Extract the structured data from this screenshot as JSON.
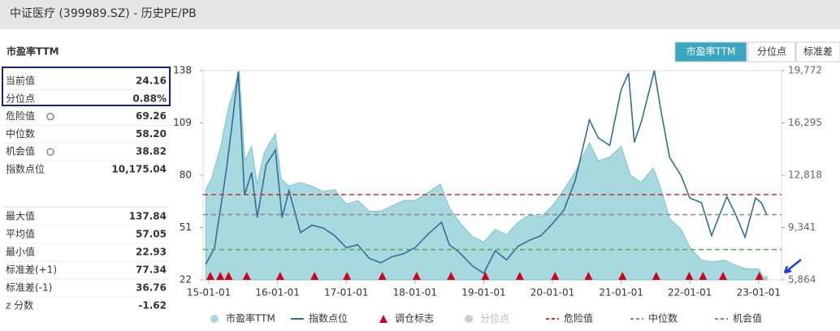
{
  "header": {
    "title": "中证医疗 (399989.SZ) - 历史PE/PB"
  },
  "tabs": [
    "市盈率TTM",
    "分位点",
    "标准差"
  ],
  "stats": {
    "title": "市盈率TTM",
    "current": [
      {
        "name": "当前值",
        "value": 24.16
      },
      {
        "name": "分位点",
        "value": {
          "value": 0.88,
          "label": "0.88%"
        }
      },
      {
        "name": "指数点位",
        "value": {
          "value": 10175.04,
          "label": "10,175.04"
        }
      }
    ],
    "summary": [
      {
        "name": "最大值",
        "value": 137.84
      },
      {
        "name": "平均值",
        "value": 57.05
      },
      {
        "name": "最小值",
        "value": 22.93
      },
      {
        "name": "标准差(+1)",
        "value": 77.34
      },
      {
        "name": "标准差(-1)",
        "value": 36.76
      },
      {
        "name": "z 分数",
        "value": -1.62
      }
    ]
  },
  "chart_data": {
    "type": "area-line",
    "xlim": [
      "14-12-01",
      "23-05-01"
    ],
    "xticks": [
      "15-01-01",
      "16-01-01",
      "17-01-01",
      "18-01-01",
      "19-01-01",
      "20-01-01",
      "21-01-01",
      "22-01-01",
      "23-01-01"
    ],
    "ylim": [
      22,
      138
    ],
    "yticks": [
      22,
      51,
      80,
      109,
      138
    ],
    "y2lim": [
      5864,
      19772
    ],
    "y2ticks": [
      {
        "value": 5864,
        "label": "5,864"
      },
      {
        "value": 9341,
        "label": "9,341"
      },
      {
        "value": 12818,
        "label": "12,818"
      },
      {
        "value": 16295,
        "label": "16,295"
      },
      {
        "value": 19772,
        "label": "19,772"
      }
    ],
    "series": [
      {
        "name": "市盈率TTM",
        "color": "#a8d9df",
        "kind": "area",
        "x": [
          "14-12-15",
          "15-01-15",
          "15-03-01",
          "15-04-15",
          "15-05-20",
          "15-06-10",
          "15-07-10",
          "15-08-15",
          "15-09-15",
          "15-10-20",
          "15-11-20",
          "15-12-20",
          "16-01-20",
          "16-03-01",
          "16-05-01",
          "16-07-01",
          "16-09-01",
          "16-11-01",
          "17-01-01",
          "17-03-01",
          "17-05-01",
          "17-07-01",
          "17-09-01",
          "17-11-01",
          "18-01-01",
          "18-03-01",
          "18-05-15",
          "18-07-01",
          "18-09-01",
          "18-11-01",
          "19-01-01",
          "19-03-01",
          "19-05-01",
          "19-07-01",
          "19-09-01",
          "19-11-01",
          "20-01-01",
          "20-03-01",
          "20-05-01",
          "20-07-15",
          "20-09-01",
          "20-11-01",
          "21-01-01",
          "21-02-20",
          "21-04-15",
          "21-06-20",
          "21-08-01",
          "21-09-15",
          "21-11-15",
          "22-01-01",
          "22-03-01",
          "22-05-01",
          "22-07-01",
          "22-09-01",
          "22-11-01",
          "23-01-01",
          "23-02-01",
          "23-02-15"
        ],
        "values": [
          72,
          78,
          95,
          118,
          130,
          137.84,
          88,
          96,
          75,
          92,
          98,
          103,
          78,
          74,
          76,
          74,
          71,
          72,
          64,
          66,
          60,
          60,
          63,
          66,
          66,
          70,
          75,
          62,
          53,
          46,
          43,
          50,
          47,
          54,
          58,
          57,
          63,
          72,
          82,
          98,
          88,
          90,
          96,
          80,
          76,
          84,
          72,
          56,
          50,
          40,
          33,
          32,
          33,
          30,
          28,
          28,
          22.93,
          24.16
        ]
      },
      {
        "name": "指数点位",
        "color": "#2f6f98",
        "kind": "line",
        "axis": "y2",
        "x": [
          "14-12-15",
          "15-02-01",
          "15-04-01",
          "15-05-01",
          "15-06-05",
          "15-07-08",
          "15-08-15",
          "15-09-15",
          "15-11-01",
          "15-12-20",
          "16-01-25",
          "16-03-01",
          "16-05-01",
          "16-07-01",
          "16-09-01",
          "16-11-01",
          "17-01-01",
          "17-03-01",
          "17-05-01",
          "17-07-01",
          "17-09-01",
          "17-11-01",
          "18-01-01",
          "18-03-01",
          "18-05-20",
          "18-07-01",
          "18-09-01",
          "18-11-01",
          "19-01-01",
          "19-03-01",
          "19-05-01",
          "19-07-01",
          "19-09-01",
          "19-11-01",
          "20-01-01",
          "20-03-01",
          "20-05-01",
          "20-07-15",
          "20-09-01",
          "20-11-01",
          "21-01-01",
          "21-02-10",
          "21-03-10",
          "21-04-20",
          "21-06-25",
          "21-08-01",
          "21-09-15",
          "21-11-15",
          "22-01-01",
          "22-03-01",
          "22-04-25",
          "22-06-01",
          "22-07-15",
          "22-09-01",
          "22-10-20",
          "22-12-15",
          "23-01-15",
          "23-02-15"
        ],
        "values": [
          6900,
          8000,
          13000,
          16000,
          19700,
          11500,
          13000,
          10000,
          13500,
          14500,
          10000,
          11800,
          9000,
          9500,
          9300,
          8800,
          8000,
          8200,
          7300,
          7000,
          7400,
          7600,
          8000,
          8800,
          9700,
          8200,
          7600,
          6800,
          6300,
          7800,
          7200,
          8100,
          8500,
          8800,
          9600,
          10500,
          12500,
          16500,
          15300,
          14800,
          18500,
          19600,
          15000,
          16500,
          19772,
          17000,
          14000,
          12800,
          11300,
          11000,
          8800,
          10000,
          11400,
          10200,
          8700,
          11300,
          11000,
          10175.04
        ]
      }
    ],
    "markers": {
      "name": "调仓标志",
      "color": "#d0021b",
      "x": [
        "15-01-09",
        "15-03-01",
        "15-04-15",
        "15-07-20",
        "16-01-15",
        "16-07-15",
        "17-01-05",
        "17-07-10",
        "18-01-10",
        "18-07-10",
        "19-01-10",
        "19-07-10",
        "20-01-15",
        "20-07-10",
        "21-01-08",
        "21-07-05",
        "21-12-28",
        "22-03-10",
        "22-06-25",
        "23-01-05"
      ]
    },
    "hidden_series": [
      {
        "name": "分位点",
        "color": "#cccccc"
      }
    ],
    "reference_lines": [
      {
        "name": "危险值",
        "value": 69.26,
        "color": "#c0392b"
      },
      {
        "name": "中位数",
        "value": {
          "value": 58.2,
          "label": "58.20"
        },
        "color": "#888888"
      },
      {
        "name": "机会值",
        "value": 38.82,
        "color": "#4caf50"
      }
    ],
    "grid": false
  }
}
